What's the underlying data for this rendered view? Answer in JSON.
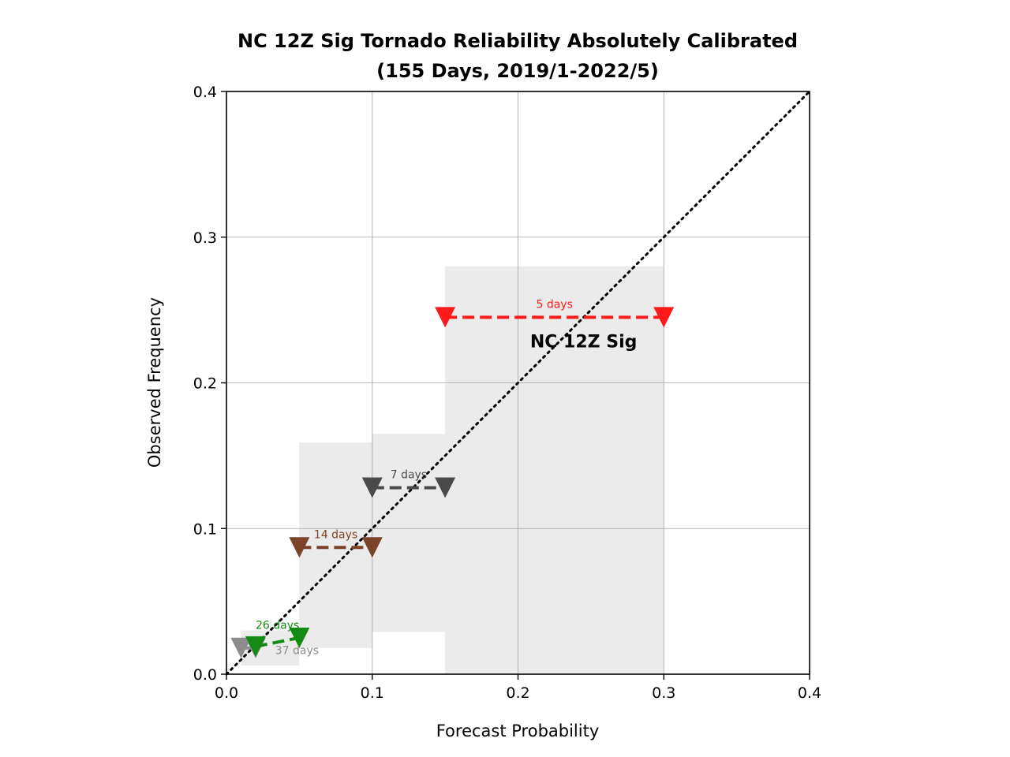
{
  "chart_data": {
    "type": "line",
    "title_line1": "NC 12Z Sig Tornado Reliability Absolutely Calibrated",
    "title_line2": "(155 Days, 2019/1-2022/5)",
    "xlabel": "Forecast Probability",
    "ylabel": "Observed Frequency",
    "xlim": [
      0,
      0.4
    ],
    "ylim": [
      0,
      0.4
    ],
    "xticks": [
      "0.0",
      "0.1",
      "0.2",
      "0.3",
      "0.4"
    ],
    "yticks": [
      "0.0",
      "0.1",
      "0.2",
      "0.3",
      "0.4"
    ],
    "grid": true,
    "reference_line": "diagonal dotted y = x",
    "model_label": "NC 12Z Sig",
    "uncertainty_boxes": [
      {
        "x0": 0.01,
        "x1": 0.05,
        "y0": 0.006,
        "y1": 0.03
      },
      {
        "x0": 0.05,
        "x1": 0.1,
        "y0": 0.018,
        "y1": 0.159
      },
      {
        "x0": 0.1,
        "x1": 0.15,
        "y0": 0.029,
        "y1": 0.165
      },
      {
        "x0": 0.15,
        "x1": 0.3,
        "y0": 0.0,
        "y1": 0.28
      }
    ],
    "series": [
      {
        "x": [
          0.01,
          0.02
        ],
        "y": [
          0.018,
          0.018
        ],
        "label": "37 days",
        "color": "#8c8c8c"
      },
      {
        "x": [
          0.02,
          0.05
        ],
        "y": [
          0.019,
          0.025
        ],
        "label": "26 days",
        "color": "#138a13"
      },
      {
        "x": [
          0.05,
          0.1
        ],
        "y": [
          0.087,
          0.087
        ],
        "label": "14 days",
        "color": "#7b4327"
      },
      {
        "x": [
          0.1,
          0.15
        ],
        "y": [
          0.128,
          0.128
        ],
        "label": "7 days",
        "color": "#4a4a4a"
      },
      {
        "x": [
          0.15,
          0.3
        ],
        "y": [
          0.245,
          0.245
        ],
        "label": "5 days",
        "color": "#ff1a1a"
      }
    ]
  }
}
